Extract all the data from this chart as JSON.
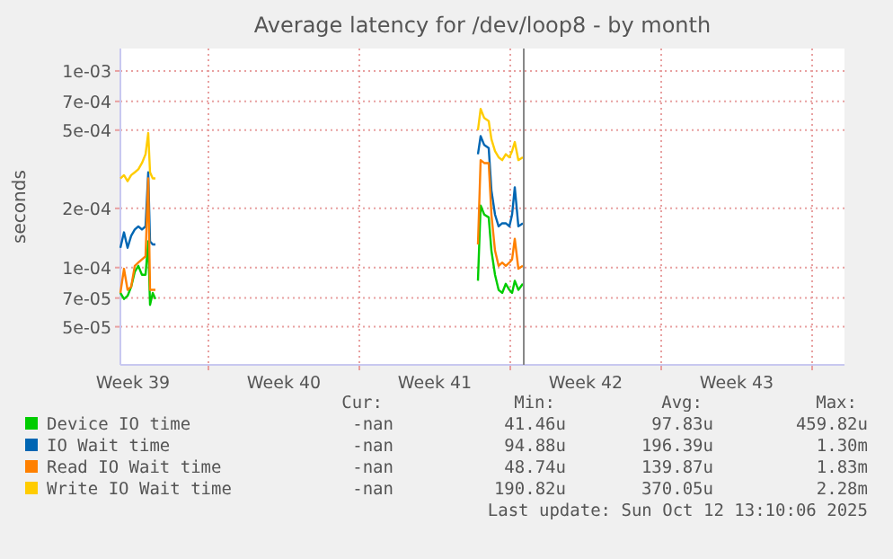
{
  "chart_data": {
    "type": "line",
    "title": "Average latency for /dev/loop8 - by month",
    "ylabel": "seconds",
    "log": "y",
    "grid": true,
    "legend": "bottom",
    "marker": "none",
    "line_style": "solid",
    "x": [
      "2025-09-24T22:00",
      "2025-09-25T02:00",
      "2025-09-25T06:00",
      "2025-09-25T10:00",
      "2025-09-25T14:00",
      "2025-09-25T18:00",
      "2025-09-25T22:00",
      "2025-09-26T02:00",
      "2025-09-26T05:00",
      "2025-09-26T07:00",
      "2025-09-26T10:00",
      "2025-09-26T13:00",
      "2025-10-01T00:00",
      "2025-10-11T12:00",
      "2025-10-11T15:00",
      "2025-10-11T19:00",
      "2025-10-12T00:00",
      "2025-10-12T03:00",
      "2025-10-12T07:00",
      "2025-10-12T11:00",
      "2025-10-12T15:00",
      "2025-10-12T19:00",
      "2025-10-12T23:00",
      "2025-10-13T02:00",
      "2025-10-13T05:00",
      "2025-10-13T09:00",
      "2025-10-13T14:00"
    ],
    "xlim": [
      "2025-09-24T22:00",
      "2025-10-28T12:00"
    ],
    "xticks": [
      {
        "value": "2025-09-25T12:00",
        "label": "Week 39"
      },
      {
        "value": "2025-10-02T12:00",
        "label": "Week 40"
      },
      {
        "value": "2025-10-09T12:00",
        "label": "Week 41"
      },
      {
        "value": "2025-10-16T12:00",
        "label": "Week 42"
      },
      {
        "value": "2025-10-23T12:00",
        "label": "Week 43"
      },
      {
        "value": "2025-09-29",
        "label": null
      },
      {
        "value": "2025-10-06",
        "label": null
      },
      {
        "value": "2025-10-13",
        "label": null
      },
      {
        "value": "2025-10-20",
        "label": null
      },
      {
        "value": "2025-10-27",
        "label": null
      }
    ],
    "ylim": [
      3.2e-05,
      0.0013
    ],
    "yticks": [
      {
        "value": 0.001,
        "label": "1e-03"
      },
      {
        "value": 0.0007,
        "label": "7e-04"
      },
      {
        "value": 0.0005,
        "label": "5e-04"
      },
      {
        "value": 0.0002,
        "label": "2e-04"
      },
      {
        "value": 0.0001,
        "label": "1e-04"
      },
      {
        "value": 7e-05,
        "label": "7e-05"
      },
      {
        "value": 5e-05,
        "label": "5e-05"
      }
    ],
    "ref_lines": [
      {
        "axis": "x",
        "value": "2025-10-13T15:00",
        "color": "#888888"
      }
    ],
    "series": [
      {
        "name": "Device IO time",
        "color": "#00cc00",
        "values": [
          7.43e-05,
          6.92e-05,
          7.18e-05,
          7.98e-05,
          9.52e-05,
          0.000102,
          9.19e-05,
          9.19e-05,
          0.000136,
          6.46e-05,
          7.43e-05,
          6.92e-05,
          null,
          8.57e-05,
          0.000207,
          0.000186,
          0.00018,
          0.000122,
          9.19e-05,
          7.7e-05,
          7.43e-05,
          8.27e-05,
          7.7e-05,
          7.43e-05,
          8.57e-05,
          7.7e-05,
          8.27e-05
        ]
      },
      {
        "name": "IO Wait time",
        "color": "#0066b3",
        "values": [
          0.000126,
          0.000151,
          0.000126,
          0.000145,
          0.000156,
          0.000162,
          0.000156,
          0.000162,
          0.000305,
          0.000136,
          0.000131,
          0.000131,
          null,
          0.000377,
          0.000466,
          0.00042,
          0.000405,
          0.000247,
          0.000186,
          0.000162,
          0.000168,
          0.000168,
          0.000162,
          0.000186,
          0.000256,
          0.000162,
          0.000168
        ]
      },
      {
        "name": "Read IO Wait time",
        "color": "#ff8000",
        "values": [
          7.43e-05,
          9.86e-05,
          7.7e-05,
          7.98e-05,
          0.000102,
          0.000106,
          0.00011,
          0.000114,
          0.000284,
          7.7e-05,
          7.7e-05,
          7.7e-05,
          null,
          0.000131,
          0.000352,
          0.00034,
          0.00034,
          0.000186,
          0.000122,
          0.000102,
          0.000106,
          0.000102,
          0.000106,
          0.00011,
          0.00014,
          9.86e-05,
          0.000102
        ]
      },
      {
        "name": "Write IO Wait time",
        "color": "#ffcc00",
        "values": [
          0.000284,
          0.000295,
          0.000275,
          0.000295,
          0.000305,
          0.000316,
          0.00034,
          0.000377,
          0.000483,
          0.000305,
          0.000284,
          0.000284,
          null,
          0.0005,
          0.000641,
          0.000576,
          0.000556,
          0.00045,
          0.000391,
          0.000364,
          0.000352,
          0.000377,
          0.000364,
          0.000391,
          0.000435,
          0.000352,
          0.000364
        ]
      }
    ],
    "annotations": [
      "Cur:",
      "Min:",
      "Avg:",
      "Max:",
      "-nan",
      "41.46u",
      "97.83u",
      "459.82u",
      "-nan",
      "94.88u",
      "196.39u",
      "1.30m",
      "-nan",
      "48.74u",
      "139.87u",
      "1.83m",
      "-nan",
      "190.82u",
      "370.05u",
      "2.28m",
      "Last update: Sun Oct 12 13:10:06 2025"
    ]
  }
}
